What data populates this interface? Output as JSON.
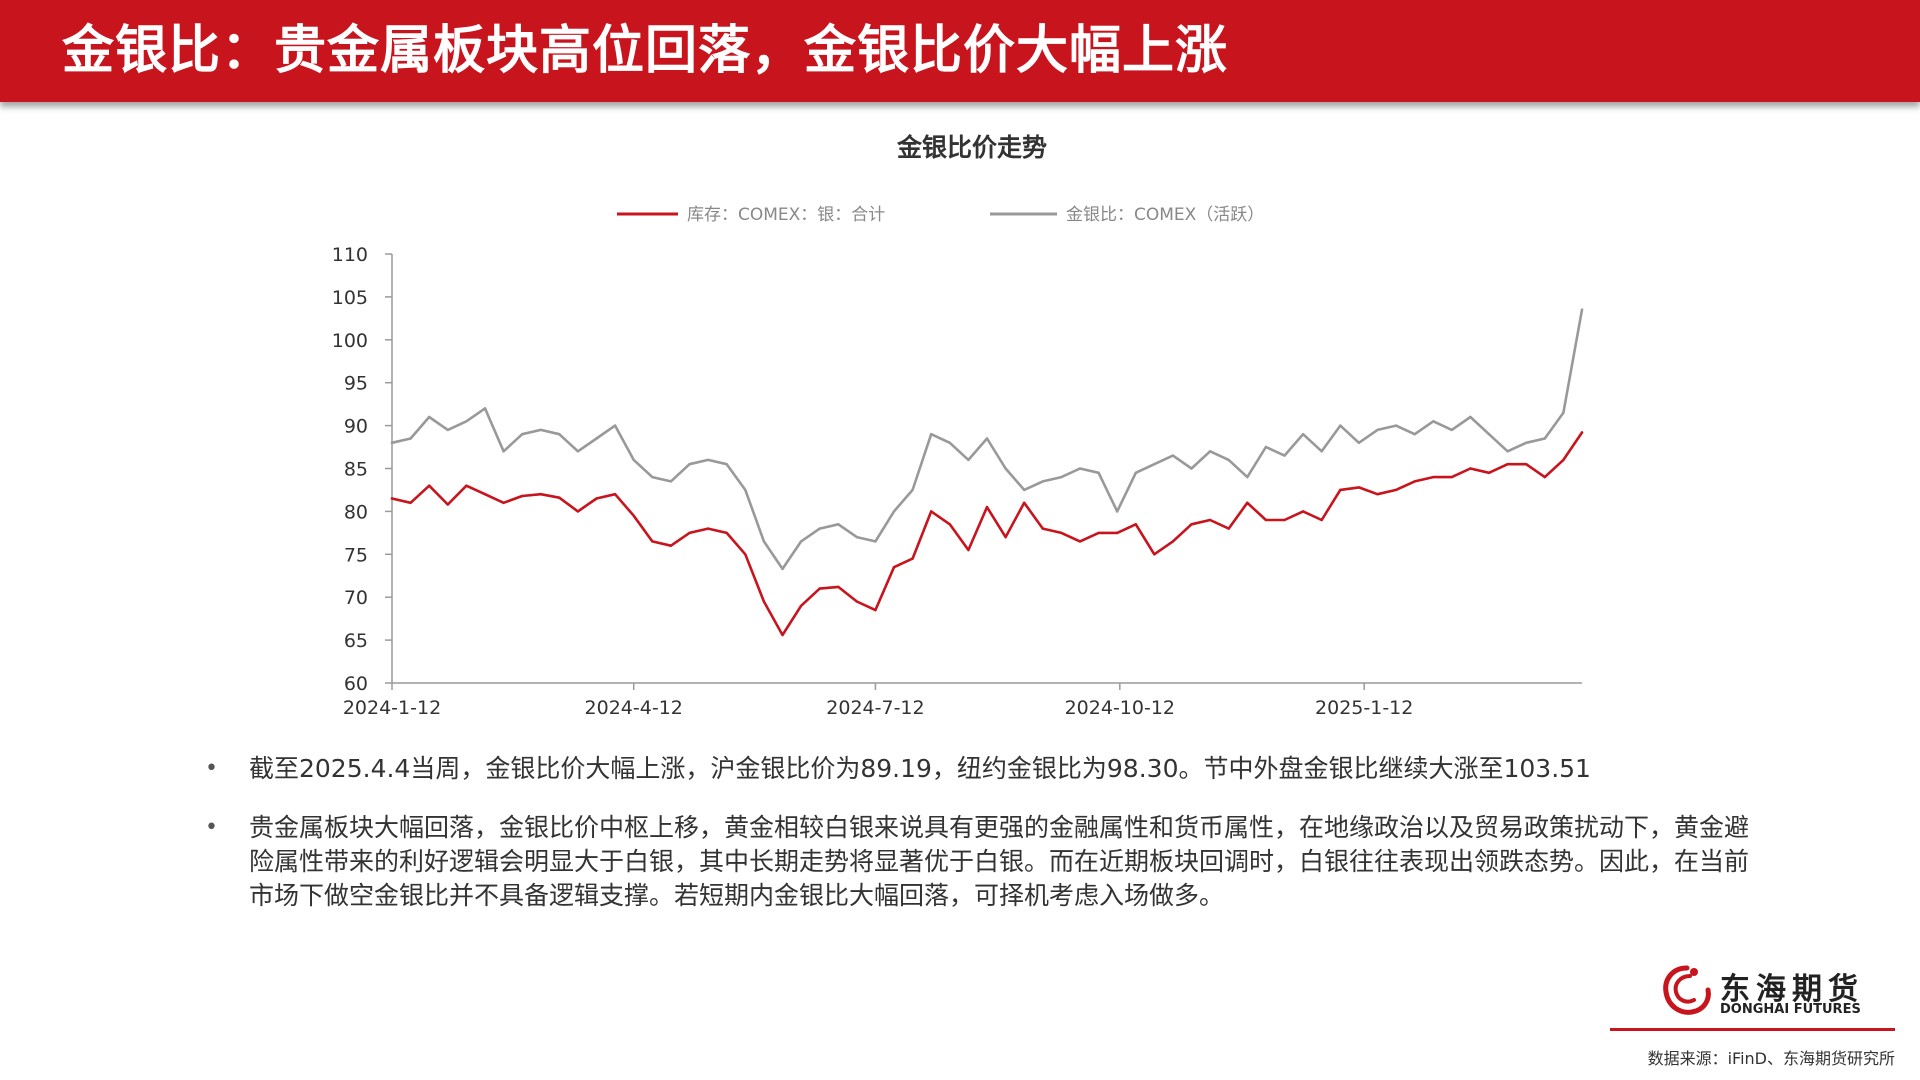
{
  "header": {
    "title": "金银比：贵金属板块高位回落，金银比价大幅上涨"
  },
  "colors": {
    "brand_red": "#c8141d",
    "series_red": "#c8141d",
    "series_gray": "#999999"
  },
  "chart_data": {
    "type": "line",
    "title": "金银比价走势",
    "xlabel": "",
    "ylabel": "",
    "ylim": [
      60,
      110
    ],
    "yticks": [
      60,
      65,
      70,
      75,
      80,
      85,
      90,
      95,
      100,
      105,
      110
    ],
    "xlim": [
      "2024-1-12",
      "2025-4-4"
    ],
    "xticks": [
      "2024-1-12",
      "2024-4-12",
      "2024-7-12",
      "2024-10-12",
      "2025-1-12"
    ],
    "legend_position": "top-center",
    "grid": false,
    "series": [
      {
        "name": "库存：COMEX：银：合计",
        "color": "#c8141d",
        "x": [
          "2024-1-12",
          "2024-1-19",
          "2024-1-26",
          "2024-2-2",
          "2024-2-9",
          "2024-2-16",
          "2024-2-23",
          "2024-3-1",
          "2024-3-8",
          "2024-3-15",
          "2024-3-22",
          "2024-3-29",
          "2024-4-5",
          "2024-4-12",
          "2024-4-19",
          "2024-4-26",
          "2024-5-3",
          "2024-5-10",
          "2024-5-17",
          "2024-5-24",
          "2024-5-31",
          "2024-6-7",
          "2024-6-14",
          "2024-6-21",
          "2024-6-28",
          "2024-7-5",
          "2024-7-12",
          "2024-7-19",
          "2024-7-26",
          "2024-8-2",
          "2024-8-9",
          "2024-8-16",
          "2024-8-23",
          "2024-8-30",
          "2024-9-6",
          "2024-9-13",
          "2024-9-20",
          "2024-9-27",
          "2024-10-4",
          "2024-10-11",
          "2024-10-18",
          "2024-10-25",
          "2024-11-1",
          "2024-11-8",
          "2024-11-15",
          "2024-11-22",
          "2024-11-29",
          "2024-12-6",
          "2024-12-13",
          "2024-12-20",
          "2024-12-27",
          "2025-1-3",
          "2025-1-10",
          "2025-1-17",
          "2025-1-24",
          "2025-1-31",
          "2025-2-7",
          "2025-2-14",
          "2025-2-21",
          "2025-2-28",
          "2025-3-7",
          "2025-3-14",
          "2025-3-21",
          "2025-3-28",
          "2025-4-4"
        ],
        "values": [
          81.5,
          81.0,
          83.0,
          80.8,
          83.0,
          82.0,
          81.0,
          81.8,
          82.0,
          81.6,
          80.0,
          81.5,
          82.0,
          79.5,
          76.5,
          76.0,
          77.5,
          78.0,
          77.5,
          75.0,
          69.5,
          65.6,
          69.0,
          71.0,
          71.2,
          69.5,
          68.5,
          73.5,
          74.5,
          80.0,
          78.5,
          75.5,
          80.5,
          77.0,
          81.0,
          78.0,
          77.5,
          76.5,
          77.5,
          77.5,
          78.5,
          75.0,
          76.5,
          78.5,
          79.0,
          78.0,
          81.0,
          79.0,
          79.0,
          80.0,
          79.0,
          82.5,
          82.8,
          82.0,
          82.5,
          83.5,
          84.0,
          84.0,
          85.0,
          84.5,
          85.5,
          85.5,
          84.0,
          86.0,
          89.19
        ]
      },
      {
        "name": "金银比：COMEX（活跃）",
        "color": "#999999",
        "x": [
          "2024-1-12",
          "2024-1-19",
          "2024-1-26",
          "2024-2-2",
          "2024-2-9",
          "2024-2-16",
          "2024-2-23",
          "2024-3-1",
          "2024-3-8",
          "2024-3-15",
          "2024-3-22",
          "2024-3-29",
          "2024-4-5",
          "2024-4-12",
          "2024-4-19",
          "2024-4-26",
          "2024-5-3",
          "2024-5-10",
          "2024-5-17",
          "2024-5-24",
          "2024-5-31",
          "2024-6-7",
          "2024-6-14",
          "2024-6-21",
          "2024-6-28",
          "2024-7-5",
          "2024-7-12",
          "2024-7-19",
          "2024-7-26",
          "2024-8-2",
          "2024-8-9",
          "2024-8-16",
          "2024-8-23",
          "2024-8-30",
          "2024-9-6",
          "2024-9-13",
          "2024-9-20",
          "2024-9-27",
          "2024-10-4",
          "2024-10-11",
          "2024-10-18",
          "2024-10-25",
          "2024-11-1",
          "2024-11-8",
          "2024-11-15",
          "2024-11-22",
          "2024-11-29",
          "2024-12-6",
          "2024-12-13",
          "2024-12-20",
          "2024-12-27",
          "2025-1-3",
          "2025-1-10",
          "2025-1-17",
          "2025-1-24",
          "2025-1-31",
          "2025-2-7",
          "2025-2-14",
          "2025-2-21",
          "2025-2-28",
          "2025-3-7",
          "2025-3-14",
          "2025-3-21",
          "2025-3-28",
          "2025-4-4"
        ],
        "values": [
          88.0,
          88.5,
          91.0,
          89.5,
          90.5,
          92.0,
          87.0,
          89.0,
          89.5,
          89.0,
          87.0,
          88.5,
          90.0,
          86.0,
          84.0,
          83.5,
          85.5,
          86.0,
          85.5,
          82.5,
          76.5,
          73.3,
          76.5,
          78.0,
          78.5,
          77.0,
          76.5,
          80.0,
          82.5,
          89.0,
          88.0,
          86.0,
          88.5,
          85.0,
          82.5,
          83.5,
          84.0,
          85.0,
          84.5,
          80.0,
          84.5,
          85.5,
          86.5,
          85.0,
          87.0,
          86.0,
          84.0,
          87.5,
          86.5,
          89.0,
          87.0,
          90.0,
          88.0,
          89.5,
          90.0,
          89.0,
          90.5,
          89.5,
          91.0,
          89.0,
          87.0,
          88.0,
          88.5,
          91.5,
          103.51
        ]
      }
    ]
  },
  "bullets": [
    "截至2025.4.4当周，金银比价大幅上涨，沪金银比价为89.19，纽约金银比为98.30。节中外盘金银比继续大涨至103.51",
    "贵金属板块大幅回落，金银比价中枢上移，黄金相较白银来说具有更强的金融属性和货币属性，在地缘政治以及贸易政策扰动下，黄金避险属性带来的利好逻辑会明显大于白银，其中长期走势将显著优于白银。而在近期板块回调时，白银往往表现出领跌态势。因此，在当前市场下做空金银比并不具备逻辑支撑。若短期内金银比大幅回落，可择机考虑入场做多。"
  ],
  "bullet_marker": "•",
  "logo": {
    "name_cn": "东海期货",
    "name_en": "DONGHAI FUTURES"
  },
  "source": "数据来源：iFinD、东海期货研究所"
}
